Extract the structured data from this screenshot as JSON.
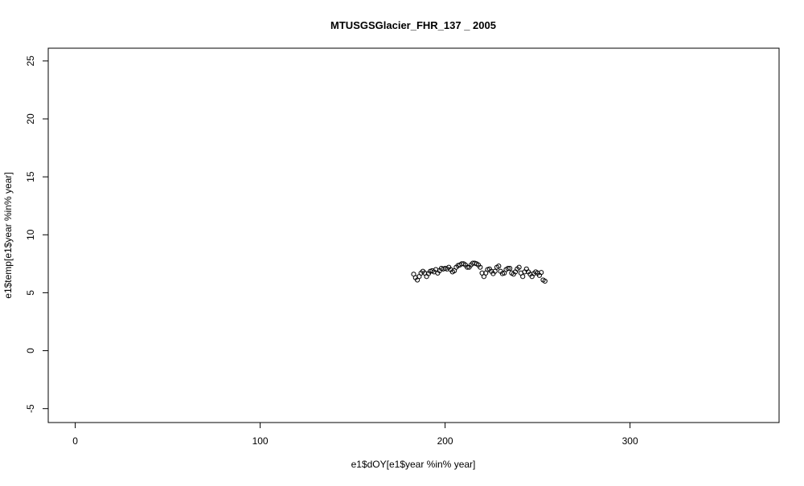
{
  "chart_data": {
    "type": "scatter",
    "title": "MTUSGSGlacier_FHR_137 _ 2005",
    "x_label": "e1$dOY[e1$year %in% year]",
    "y_label": "e1$temp[e1$year %in% year]",
    "x": [
      183,
      184,
      185,
      186,
      187,
      188,
      189,
      190,
      191,
      192,
      193,
      194,
      195,
      196,
      197,
      198,
      199,
      200,
      201,
      202,
      203,
      204,
      205,
      206,
      207,
      208,
      209,
      210,
      211,
      212,
      213,
      214,
      215,
      216,
      217,
      218,
      219,
      220,
      221,
      222,
      223,
      224,
      225,
      226,
      227,
      228,
      229,
      230,
      231,
      232,
      233,
      234,
      235,
      236,
      237,
      238,
      239,
      240,
      241,
      242,
      243,
      244,
      245,
      246,
      247,
      248,
      249,
      250,
      251,
      252,
      253,
      254
    ],
    "values": [
      6.6,
      6.3,
      6.1,
      6.4,
      6.7,
      6.85,
      6.7,
      6.4,
      6.65,
      6.85,
      6.9,
      6.8,
      7.0,
      6.7,
      6.9,
      7.1,
      7.05,
      7.1,
      7.05,
      7.2,
      7.0,
      6.8,
      6.9,
      7.2,
      7.35,
      7.4,
      7.5,
      7.5,
      7.4,
      7.2,
      7.2,
      7.4,
      7.55,
      7.55,
      7.5,
      7.4,
      7.2,
      6.7,
      6.4,
      6.7,
      7.0,
      7.05,
      6.85,
      6.65,
      6.85,
      7.2,
      7.3,
      6.85,
      6.65,
      6.7,
      7.0,
      7.1,
      7.1,
      6.7,
      6.6,
      6.8,
      7.05,
      7.2,
      6.7,
      6.4,
      6.8,
      7.05,
      6.8,
      6.6,
      6.4,
      6.65,
      6.8,
      6.7,
      6.5,
      6.75,
      6.1,
      6.0
    ],
    "color": "#000000",
    "xlim": [
      -14.6,
      380.6
    ],
    "xticks": [
      0,
      100,
      200,
      300
    ],
    "ylim": [
      -6.2,
      26.1
    ],
    "yticks": [
      -5,
      0,
      5,
      10,
      15,
      20,
      25
    ],
    "grid": false
  }
}
